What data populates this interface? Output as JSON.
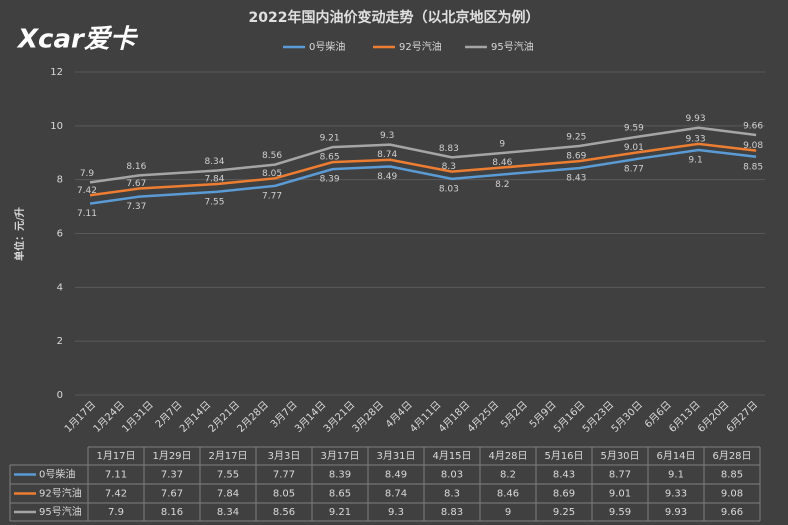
{
  "chart_data": {
    "type": "line",
    "title": "2022年国内油价变动走势（以北京地区为例）",
    "logo": "Xcar爱卡",
    "y_label": "单位：元/升",
    "categories": [
      "1月17日",
      "1月29日",
      "2月17日",
      "3月3日",
      "3月17日",
      "3月31日",
      "4月15日",
      "4月28日",
      "5月16日",
      "5月30日",
      "6月14日",
      "6月28日"
    ],
    "xticks": [
      "1月17日",
      "1月24日",
      "1月31日",
      "2月7日",
      "2月14日",
      "2月21日",
      "2月28日",
      "3月7日",
      "3月14日",
      "3月21日",
      "3月28日",
      "4月4日",
      "4月11日",
      "4月18日",
      "4月25日",
      "5月2日",
      "5月9日",
      "5月16日",
      "5月23日",
      "5月30日",
      "6月6日",
      "6月13日",
      "6月20日",
      "6月27日"
    ],
    "series": [
      {
        "name": "0号柴油",
        "color": "#5b9bd5",
        "values": [
          7.11,
          7.37,
          7.55,
          7.77,
          8.39,
          8.49,
          8.03,
          8.2,
          8.43,
          8.77,
          9.1,
          8.85
        ]
      },
      {
        "name": "92号汽油",
        "color": "#ed7d31",
        "values": [
          7.42,
          7.67,
          7.84,
          8.05,
          8.65,
          8.74,
          8.3,
          8.46,
          8.69,
          9.01,
          9.33,
          9.08
        ]
      },
      {
        "name": "95号汽油",
        "color": "#a5a5a5",
        "values": [
          7.9,
          8.16,
          8.34,
          8.56,
          9.21,
          9.3,
          8.83,
          9,
          9.25,
          9.59,
          9.93,
          9.66
        ]
      }
    ],
    "ylim": [
      0,
      12
    ],
    "yticks": [
      0,
      2,
      4,
      6,
      8,
      10,
      12
    ],
    "grid": true,
    "legend": "top"
  }
}
